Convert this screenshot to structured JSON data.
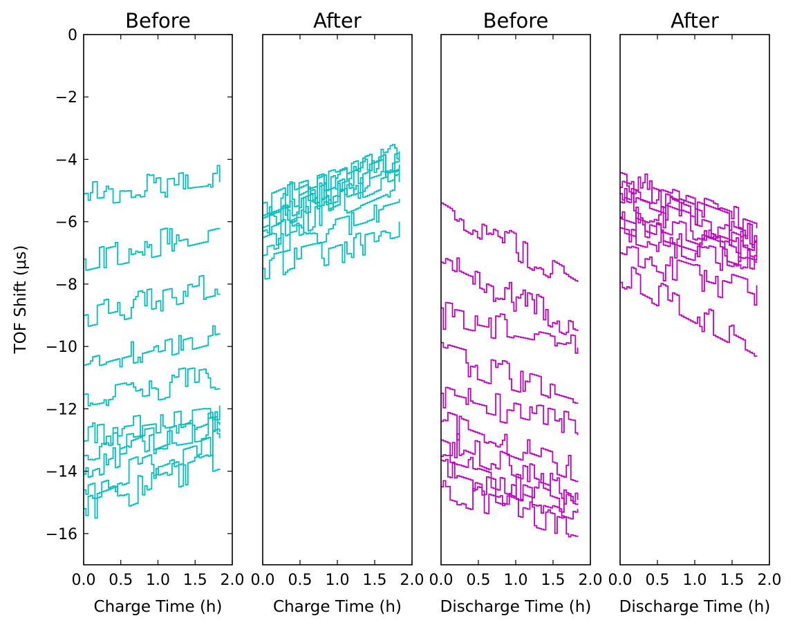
{
  "ylabel": "TOF Shift (μs)",
  "y_ticks": [
    "0",
    "−2",
    "−4",
    "−6",
    "−8",
    "−10",
    "−12",
    "−14",
    "−16"
  ],
  "x_ticks": [
    "0.0",
    "0.5",
    "1.0",
    "1.5",
    "2.0"
  ],
  "chart_data": [
    {
      "type": "line",
      "title": "Before",
      "xlabel": "Charge Time (h)",
      "ylabel": "TOF Shift (μs)",
      "xlim": [
        0,
        2
      ],
      "ylim": [
        -17,
        0
      ],
      "color": "#00bfbf",
      "trend": "increasing",
      "series": [
        {
          "start": -5.1,
          "end": -4.6
        },
        {
          "start": -7.2,
          "end": -6.2
        },
        {
          "start": -9.0,
          "end": -8.0
        },
        {
          "start": -10.6,
          "end": -9.4
        },
        {
          "start": -11.7,
          "end": -10.9
        },
        {
          "start": -12.8,
          "end": -12.2
        },
        {
          "start": -13.3,
          "end": -12.6
        },
        {
          "start": -14.0,
          "end": -12.3
        },
        {
          "start": -14.6,
          "end": -13.0
        },
        {
          "start": -15.2,
          "end": -13.6
        }
      ]
    },
    {
      "type": "line",
      "title": "After",
      "xlabel": "Charge Time (h)",
      "ylabel": "",
      "xlim": [
        0,
        2
      ],
      "ylim": [
        -17,
        0
      ],
      "color": "#00bfbf",
      "trend": "increasing",
      "series": [
        {
          "start": -5.4,
          "end": -4.0
        },
        {
          "start": -5.6,
          "end": -3.7
        },
        {
          "start": -5.8,
          "end": -4.2
        },
        {
          "start": -6.0,
          "end": -3.9
        },
        {
          "start": -6.2,
          "end": -4.4
        },
        {
          "start": -6.5,
          "end": -4.6
        },
        {
          "start": -6.8,
          "end": -5.6
        },
        {
          "start": -7.5,
          "end": -6.4
        }
      ]
    },
    {
      "type": "line",
      "title": "Before",
      "xlabel": "Discharge Time (h)",
      "ylabel": "",
      "xlim": [
        0,
        2
      ],
      "ylim": [
        -17,
        0
      ],
      "color": "#bf00bf",
      "trend": "decreasing",
      "series": [
        {
          "start": -5.4,
          "end": -8.0
        },
        {
          "start": -7.3,
          "end": -9.4
        },
        {
          "start": -9.0,
          "end": -9.9
        },
        {
          "start": -10.3,
          "end": -11.6
        },
        {
          "start": -11.5,
          "end": -12.6
        },
        {
          "start": -12.4,
          "end": -14.0
        },
        {
          "start": -13.0,
          "end": -14.8
        },
        {
          "start": -13.6,
          "end": -15.1
        },
        {
          "start": -14.0,
          "end": -15.4
        },
        {
          "start": -14.5,
          "end": -15.8
        }
      ]
    },
    {
      "type": "line",
      "title": "After",
      "xlabel": "Discharge Time (h)",
      "ylabel": "",
      "xlim": [
        0,
        2
      ],
      "ylim": [
        -17,
        0
      ],
      "color": "#bf00bf",
      "trend": "decreasing",
      "series": [
        {
          "start": -4.6,
          "end": -6.2
        },
        {
          "start": -4.9,
          "end": -6.5
        },
        {
          "start": -5.1,
          "end": -6.6
        },
        {
          "start": -5.3,
          "end": -6.9
        },
        {
          "start": -5.6,
          "end": -7.1
        },
        {
          "start": -5.9,
          "end": -7.3
        },
        {
          "start": -6.3,
          "end": -7.5
        },
        {
          "start": -7.0,
          "end": -8.4
        },
        {
          "start": -7.7,
          "end": -10.0
        }
      ]
    }
  ]
}
